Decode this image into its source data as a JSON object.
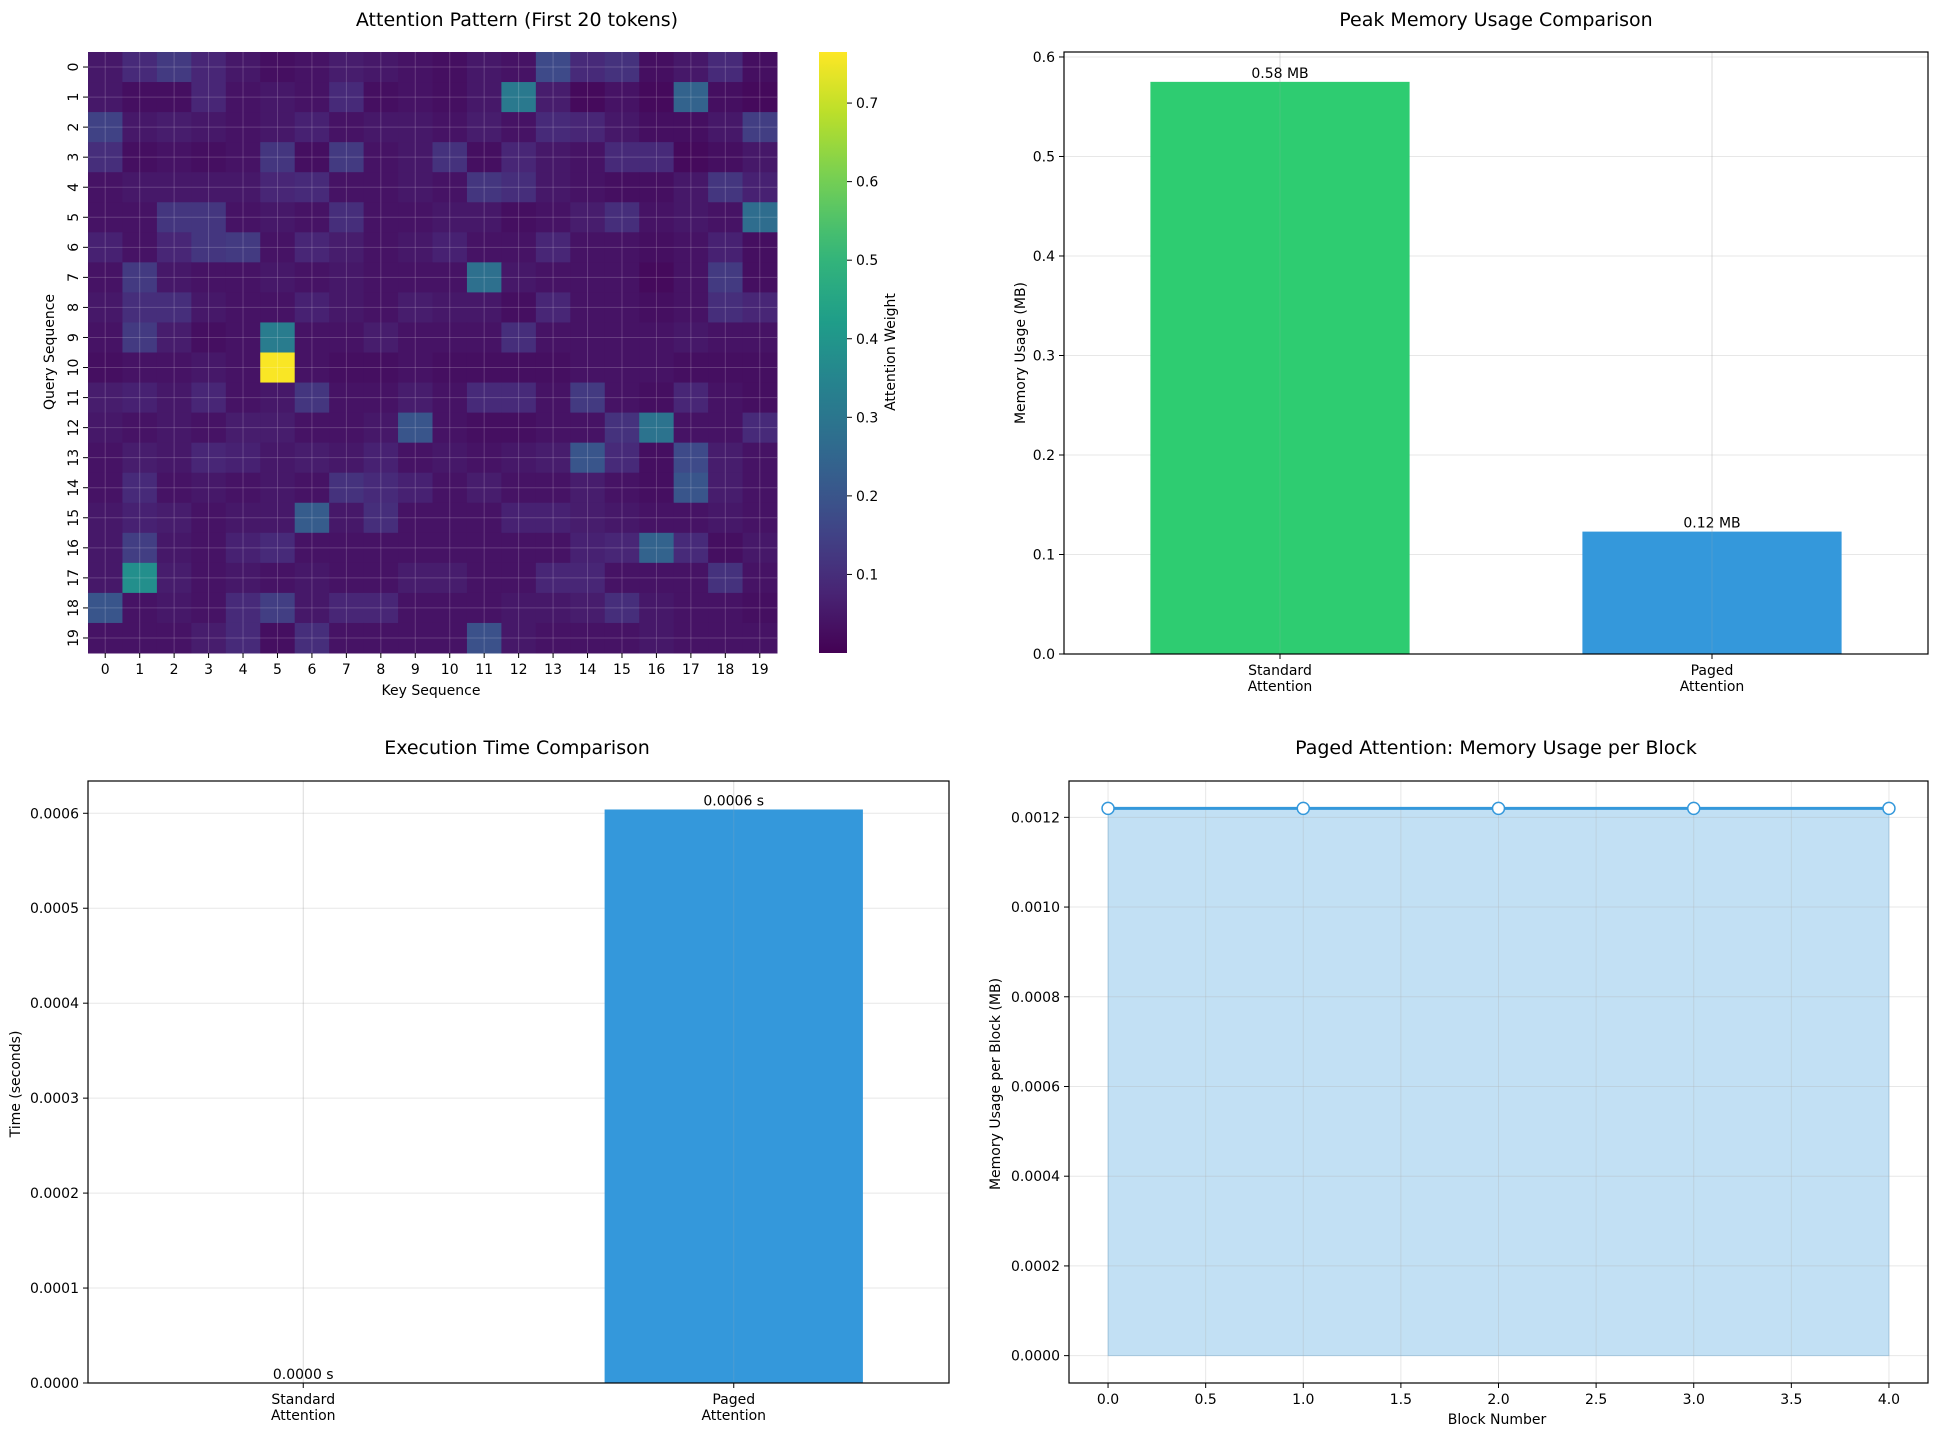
{
  "chart_data": [
    {
      "type": "heatmap",
      "title": "Attention Pattern (First 20 tokens)",
      "xlabel": "Key Sequence",
      "ylabel": "Query Sequence",
      "colorbar_label": "Attention Weight",
      "colormap": "viridis",
      "vmin": 0.0,
      "vmax": 0.765,
      "colorbar_ticks": [
        0.1,
        0.2,
        0.3,
        0.4,
        0.5,
        0.6,
        0.7
      ],
      "x_ticks": [
        "0",
        "1",
        "2",
        "3",
        "4",
        "5",
        "6",
        "7",
        "8",
        "9",
        "10",
        "11",
        "12",
        "13",
        "14",
        "15",
        "16",
        "17",
        "18",
        "19"
      ],
      "y_ticks": [
        "0",
        "1",
        "2",
        "3",
        "4",
        "5",
        "6",
        "7",
        "8",
        "9",
        "10",
        "11",
        "12",
        "13",
        "14",
        "15",
        "16",
        "17",
        "18",
        "19"
      ],
      "grid": true,
      "matrix": [
        [
          0.05,
          0.09,
          0.13,
          0.08,
          0.05,
          0.03,
          0.04,
          0.06,
          0.05,
          0.04,
          0.03,
          0.05,
          0.04,
          0.17,
          0.09,
          0.11,
          0.03,
          0.05,
          0.09,
          0.03
        ],
        [
          0.05,
          0.03,
          0.03,
          0.08,
          0.04,
          0.05,
          0.04,
          0.09,
          0.03,
          0.04,
          0.03,
          0.05,
          0.31,
          0.06,
          0.02,
          0.04,
          0.02,
          0.24,
          0.03,
          0.02
        ],
        [
          0.15,
          0.05,
          0.06,
          0.05,
          0.04,
          0.05,
          0.07,
          0.04,
          0.05,
          0.05,
          0.04,
          0.06,
          0.04,
          0.09,
          0.08,
          0.05,
          0.03,
          0.03,
          0.05,
          0.14
        ],
        [
          0.1,
          0.03,
          0.04,
          0.03,
          0.04,
          0.12,
          0.03,
          0.13,
          0.04,
          0.05,
          0.11,
          0.03,
          0.08,
          0.05,
          0.04,
          0.09,
          0.09,
          0.02,
          0.03,
          0.05
        ],
        [
          0.04,
          0.05,
          0.05,
          0.05,
          0.05,
          0.08,
          0.09,
          0.04,
          0.04,
          0.05,
          0.04,
          0.12,
          0.1,
          0.05,
          0.04,
          0.03,
          0.03,
          0.05,
          0.12,
          0.07
        ],
        [
          0.04,
          0.04,
          0.12,
          0.12,
          0.04,
          0.05,
          0.04,
          0.1,
          0.04,
          0.04,
          0.05,
          0.05,
          0.03,
          0.04,
          0.06,
          0.1,
          0.04,
          0.05,
          0.04,
          0.27
        ],
        [
          0.07,
          0.04,
          0.08,
          0.12,
          0.13,
          0.04,
          0.08,
          0.06,
          0.04,
          0.05,
          0.07,
          0.04,
          0.04,
          0.08,
          0.04,
          0.04,
          0.03,
          0.04,
          0.07,
          0.03
        ],
        [
          0.04,
          0.13,
          0.05,
          0.04,
          0.04,
          0.05,
          0.04,
          0.05,
          0.04,
          0.04,
          0.04,
          0.28,
          0.05,
          0.04,
          0.04,
          0.04,
          0.02,
          0.04,
          0.13,
          0.03
        ],
        [
          0.05,
          0.1,
          0.1,
          0.05,
          0.04,
          0.04,
          0.07,
          0.05,
          0.04,
          0.06,
          0.05,
          0.05,
          0.03,
          0.08,
          0.04,
          0.04,
          0.03,
          0.04,
          0.1,
          0.08
        ],
        [
          0.04,
          0.13,
          0.06,
          0.03,
          0.04,
          0.32,
          0.04,
          0.04,
          0.06,
          0.04,
          0.04,
          0.04,
          0.1,
          0.04,
          0.04,
          0.04,
          0.04,
          0.05,
          0.04,
          0.04
        ],
        [
          0.03,
          0.04,
          0.04,
          0.05,
          0.04,
          0.76,
          0.04,
          0.03,
          0.03,
          0.04,
          0.03,
          0.03,
          0.03,
          0.03,
          0.04,
          0.04,
          0.04,
          0.03,
          0.03,
          0.03
        ],
        [
          0.06,
          0.07,
          0.05,
          0.08,
          0.04,
          0.05,
          0.12,
          0.04,
          0.04,
          0.06,
          0.04,
          0.09,
          0.09,
          0.04,
          0.13,
          0.04,
          0.03,
          0.08,
          0.04,
          0.03
        ],
        [
          0.05,
          0.04,
          0.05,
          0.04,
          0.06,
          0.06,
          0.04,
          0.04,
          0.05,
          0.2,
          0.04,
          0.03,
          0.03,
          0.04,
          0.04,
          0.11,
          0.29,
          0.04,
          0.04,
          0.09
        ],
        [
          0.04,
          0.06,
          0.05,
          0.08,
          0.07,
          0.05,
          0.06,
          0.05,
          0.07,
          0.04,
          0.05,
          0.04,
          0.05,
          0.06,
          0.2,
          0.09,
          0.03,
          0.17,
          0.06,
          0.04
        ],
        [
          0.04,
          0.09,
          0.04,
          0.05,
          0.04,
          0.05,
          0.04,
          0.11,
          0.09,
          0.07,
          0.04,
          0.06,
          0.04,
          0.04,
          0.06,
          0.04,
          0.03,
          0.2,
          0.06,
          0.04
        ],
        [
          0.05,
          0.07,
          0.06,
          0.04,
          0.05,
          0.05,
          0.22,
          0.05,
          0.1,
          0.04,
          0.04,
          0.04,
          0.07,
          0.07,
          0.06,
          0.05,
          0.04,
          0.04,
          0.05,
          0.04
        ],
        [
          0.05,
          0.14,
          0.05,
          0.04,
          0.07,
          0.09,
          0.04,
          0.04,
          0.04,
          0.04,
          0.04,
          0.04,
          0.04,
          0.04,
          0.07,
          0.08,
          0.24,
          0.09,
          0.03,
          0.05
        ],
        [
          0.05,
          0.38,
          0.06,
          0.04,
          0.05,
          0.04,
          0.05,
          0.04,
          0.04,
          0.06,
          0.06,
          0.04,
          0.04,
          0.08,
          0.08,
          0.04,
          0.04,
          0.04,
          0.11,
          0.04
        ],
        [
          0.2,
          0.04,
          0.05,
          0.04,
          0.09,
          0.14,
          0.05,
          0.08,
          0.08,
          0.04,
          0.04,
          0.04,
          0.05,
          0.05,
          0.06,
          0.1,
          0.05,
          0.04,
          0.04,
          0.03
        ],
        [
          0.04,
          0.04,
          0.04,
          0.06,
          0.09,
          0.03,
          0.1,
          0.04,
          0.04,
          0.04,
          0.04,
          0.19,
          0.05,
          0.04,
          0.04,
          0.04,
          0.05,
          0.04,
          0.04,
          0.04
        ]
      ]
    },
    {
      "type": "bar",
      "title": "Peak Memory Usage Comparison",
      "xlabel": "",
      "ylabel": "Memory Usage (MB)",
      "categories": [
        [
          "Standard",
          "Attention"
        ],
        [
          "Paged",
          "Attention"
        ]
      ],
      "values": [
        0.575,
        0.123
      ],
      "data_labels": [
        "0.58 MB",
        "0.12 MB"
      ],
      "colors": [
        "#2ecc71",
        "#3498db"
      ],
      "ylim": [
        0,
        0.605
      ],
      "y_ticks": [
        "0.0",
        "0.1",
        "0.2",
        "0.3",
        "0.4",
        "0.5",
        "0.6"
      ],
      "grid": true
    },
    {
      "type": "bar",
      "title": "Execution Time Comparison",
      "xlabel": "",
      "ylabel": "Time (seconds)",
      "categories": [
        [
          "Standard",
          "Attention"
        ],
        [
          "Paged",
          "Attention"
        ]
      ],
      "values": [
        0.0,
        0.000604
      ],
      "data_labels": [
        "0.0000 s",
        "0.0006 s"
      ],
      "colors": [
        "#2ecc71",
        "#3498db"
      ],
      "ylim": [
        0,
        0.000634
      ],
      "y_ticks": [
        "0.0000",
        "0.0001",
        "0.0002",
        "0.0003",
        "0.0004",
        "0.0005",
        "0.0006"
      ],
      "grid": true
    },
    {
      "type": "area",
      "title": "Paged Attention: Memory Usage per Block",
      "xlabel": "Block Number",
      "ylabel": "Memory Usage per Block (MB)",
      "x": [
        0,
        1,
        2,
        3,
        4
      ],
      "y": [
        0.00122,
        0.00122,
        0.00122,
        0.00122,
        0.00122
      ],
      "color": "#3498db",
      "xlim": [
        -0.2,
        4.2
      ],
      "ylim": [
        -6.1e-05,
        0.001281
      ],
      "x_ticks": [
        "0.0",
        "0.5",
        "1.0",
        "1.5",
        "2.0",
        "2.5",
        "3.0",
        "3.5",
        "4.0"
      ],
      "y_ticks": [
        "0.0000",
        "0.0002",
        "0.0004",
        "0.0006",
        "0.0008",
        "0.0010",
        "0.0012"
      ],
      "grid": true
    }
  ]
}
